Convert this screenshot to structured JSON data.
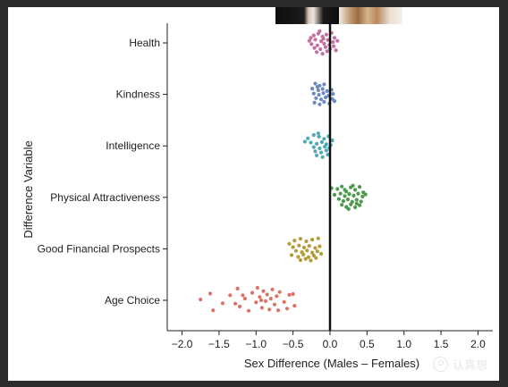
{
  "chart_data": {
    "type": "scatter",
    "title": "",
    "xlabel": "Sex Difference (Males – Females)",
    "ylabel": "Difference Variable",
    "xlim": [
      -2.2,
      2.2
    ],
    "x_ticks": [
      "−2.0",
      "−1.5",
      "−1.0",
      "−0.5",
      "0.0",
      "0.5",
      "1.0",
      "1.5",
      "2.0"
    ],
    "x_tick_values": [
      -2.0,
      -1.5,
      -1.0,
      -0.5,
      0.0,
      0.5,
      1.0,
      1.5,
      2.0
    ],
    "reference_line_x": 0.0,
    "grid": false,
    "legend": "none",
    "categories": [
      "Health",
      "Kindness",
      "Intelligence",
      "Physical Attractiveness",
      "Good Financial Prospects",
      "Age Choice"
    ],
    "colors": [
      "#c46fa3",
      "#6d89c2",
      "#4fa8b4",
      "#4d9a4d",
      "#b39c3c",
      "#db7366"
    ],
    "series": [
      {
        "values": [
          {
            "x": -0.22,
            "y": 0.18
          },
          {
            "x": -0.16,
            "y": 0.22
          },
          {
            "x": -0.1,
            "y": 0.15
          },
          {
            "x": -0.05,
            "y": 0.2
          },
          {
            "x": 0.02,
            "y": 0.24
          },
          {
            "x": 0.06,
            "y": 0.12
          },
          {
            "x": -0.28,
            "y": 0.05
          },
          {
            "x": -0.2,
            "y": 0.08
          },
          {
            "x": -0.12,
            "y": 0.04
          },
          {
            "x": -0.03,
            "y": 0.07
          },
          {
            "x": 0.04,
            "y": 0.02
          },
          {
            "x": 0.1,
            "y": 0.05
          },
          {
            "x": -0.25,
            "y": -0.03
          },
          {
            "x": -0.17,
            "y": -0.06
          },
          {
            "x": -0.08,
            "y": -0.02
          },
          {
            "x": -0.01,
            "y": -0.05
          },
          {
            "x": 0.05,
            "y": -0.08
          },
          {
            "x": -0.21,
            "y": -0.12
          },
          {
            "x": -0.13,
            "y": -0.15
          },
          {
            "x": -0.06,
            "y": -0.1
          },
          {
            "x": 0.0,
            "y": -0.14
          },
          {
            "x": -0.18,
            "y": -0.22
          },
          {
            "x": -0.1,
            "y": -0.26
          },
          {
            "x": -0.04,
            "y": -0.2
          },
          {
            "x": -0.14,
            "y": 0.28
          },
          {
            "x": -0.26,
            "y": 0.12
          },
          {
            "x": 0.08,
            "y": -0.18
          },
          {
            "x": -0.09,
            "y": 0.1
          }
        ]
      },
      {
        "values": [
          {
            "x": -0.2,
            "y": 0.26
          },
          {
            "x": -0.14,
            "y": 0.21
          },
          {
            "x": -0.08,
            "y": 0.24
          },
          {
            "x": -0.24,
            "y": 0.14
          },
          {
            "x": -0.16,
            "y": 0.1
          },
          {
            "x": -0.1,
            "y": 0.13
          },
          {
            "x": -0.04,
            "y": 0.08
          },
          {
            "x": 0.02,
            "y": 0.11
          },
          {
            "x": -0.22,
            "y": 0.02
          },
          {
            "x": -0.15,
            "y": -0.01
          },
          {
            "x": -0.09,
            "y": 0.03
          },
          {
            "x": -0.02,
            "y": -0.03
          },
          {
            "x": 0.04,
            "y": 0.01
          },
          {
            "x": -0.19,
            "y": -0.09
          },
          {
            "x": -0.12,
            "y": -0.12
          },
          {
            "x": -0.06,
            "y": -0.07
          },
          {
            "x": 0.03,
            "y": -0.11
          },
          {
            "x": -0.21,
            "y": -0.2
          },
          {
            "x": -0.14,
            "y": -0.24
          },
          {
            "x": -0.08,
            "y": -0.18
          },
          {
            "x": -0.01,
            "y": -0.22
          },
          {
            "x": -0.17,
            "y": 0.18
          },
          {
            "x": 0.06,
            "y": -0.16
          }
        ]
      },
      {
        "values": [
          {
            "x": -0.3,
            "y": 0.18
          },
          {
            "x": -0.22,
            "y": 0.26
          },
          {
            "x": -0.15,
            "y": 0.22
          },
          {
            "x": -0.08,
            "y": 0.17
          },
          {
            "x": -0.02,
            "y": 0.23
          },
          {
            "x": 0.03,
            "y": 0.13
          },
          {
            "x": -0.26,
            "y": 0.08
          },
          {
            "x": -0.18,
            "y": 0.05
          },
          {
            "x": -0.11,
            "y": 0.09
          },
          {
            "x": -0.05,
            "y": 0.04
          },
          {
            "x": -0.22,
            "y": -0.03
          },
          {
            "x": -0.14,
            "y": -0.06
          },
          {
            "x": -0.07,
            "y": -0.02
          },
          {
            "x": -0.01,
            "y": -0.05
          },
          {
            "x": -0.2,
            "y": -0.13
          },
          {
            "x": -0.12,
            "y": -0.16
          },
          {
            "x": -0.05,
            "y": -0.11
          },
          {
            "x": -0.18,
            "y": -0.23
          },
          {
            "x": -0.1,
            "y": -0.27
          },
          {
            "x": -0.03,
            "y": -0.21
          },
          {
            "x": -0.34,
            "y": 0.1
          },
          {
            "x": -0.16,
            "y": 0.3
          },
          {
            "x": 0.01,
            "y": 0.02
          }
        ]
      },
      {
        "values": [
          {
            "x": 0.02,
            "y": 0.22
          },
          {
            "x": 0.1,
            "y": 0.2
          },
          {
            "x": 0.16,
            "y": 0.26
          },
          {
            "x": 0.22,
            "y": 0.14
          },
          {
            "x": 0.28,
            "y": 0.24
          },
          {
            "x": 0.34,
            "y": 0.18
          },
          {
            "x": 0.4,
            "y": 0.25
          },
          {
            "x": 0.45,
            "y": 0.12
          },
          {
            "x": 0.06,
            "y": 0.06
          },
          {
            "x": 0.14,
            "y": 0.09
          },
          {
            "x": 0.2,
            "y": 0.03
          },
          {
            "x": 0.26,
            "y": 0.08
          },
          {
            "x": 0.32,
            "y": 0.04
          },
          {
            "x": 0.38,
            "y": 0.09
          },
          {
            "x": 0.44,
            "y": 0.02
          },
          {
            "x": 0.48,
            "y": 0.07
          },
          {
            "x": 0.12,
            "y": -0.04
          },
          {
            "x": 0.18,
            "y": -0.09
          },
          {
            "x": 0.24,
            "y": -0.05
          },
          {
            "x": 0.3,
            "y": -0.11
          },
          {
            "x": 0.36,
            "y": -0.06
          },
          {
            "x": 0.42,
            "y": -0.1
          },
          {
            "x": 0.16,
            "y": -0.18
          },
          {
            "x": 0.22,
            "y": -0.23
          },
          {
            "x": 0.28,
            "y": -0.17
          },
          {
            "x": 0.34,
            "y": -0.24
          },
          {
            "x": 0.4,
            "y": -0.19
          },
          {
            "x": 0.25,
            "y": -0.28
          },
          {
            "x": 0.31,
            "y": 0.28
          },
          {
            "x": 0.36,
            "y": -0.15
          },
          {
            "x": 0.2,
            "y": 0.18
          }
        ]
      },
      {
        "values": [
          {
            "x": -0.55,
            "y": 0.12
          },
          {
            "x": -0.48,
            "y": 0.2
          },
          {
            "x": -0.4,
            "y": 0.24
          },
          {
            "x": -0.32,
            "y": 0.18
          },
          {
            "x": -0.24,
            "y": 0.22
          },
          {
            "x": -0.16,
            "y": 0.25
          },
          {
            "x": -0.5,
            "y": 0.04
          },
          {
            "x": -0.42,
            "y": 0.08
          },
          {
            "x": -0.35,
            "y": 0.03
          },
          {
            "x": -0.28,
            "y": 0.07
          },
          {
            "x": -0.2,
            "y": 0.02
          },
          {
            "x": -0.14,
            "y": 0.06
          },
          {
            "x": -0.46,
            "y": -0.05
          },
          {
            "x": -0.38,
            "y": -0.08
          },
          {
            "x": -0.31,
            "y": -0.04
          },
          {
            "x": -0.24,
            "y": -0.09
          },
          {
            "x": -0.17,
            "y": -0.06
          },
          {
            "x": -0.52,
            "y": -0.15
          },
          {
            "x": -0.43,
            "y": -0.19
          },
          {
            "x": -0.36,
            "y": -0.14
          },
          {
            "x": -0.29,
            "y": -0.2
          },
          {
            "x": -0.22,
            "y": -0.16
          },
          {
            "x": -0.4,
            "y": -0.27
          },
          {
            "x": -0.33,
            "y": -0.24
          },
          {
            "x": -0.26,
            "y": -0.28
          },
          {
            "x": -0.19,
            "y": -0.22
          },
          {
            "x": -0.12,
            "y": -0.12
          }
        ]
      },
      {
        "values": [
          {
            "x": -1.75,
            "y": 0.02
          },
          {
            "x": -1.62,
            "y": 0.16
          },
          {
            "x": -1.58,
            "y": -0.24
          },
          {
            "x": -1.45,
            "y": -0.07
          },
          {
            "x": -1.35,
            "y": 0.12
          },
          {
            "x": -1.25,
            "y": 0.28
          },
          {
            "x": -1.22,
            "y": -0.15
          },
          {
            "x": -1.15,
            "y": 0.04
          },
          {
            "x": -1.1,
            "y": -0.25
          },
          {
            "x": -1.05,
            "y": 0.18
          },
          {
            "x": -1.0,
            "y": -0.05
          },
          {
            "x": -0.98,
            "y": 0.3
          },
          {
            "x": -0.95,
            "y": 0.08
          },
          {
            "x": -0.92,
            "y": -0.18
          },
          {
            "x": -0.9,
            "y": 0.22
          },
          {
            "x": -0.87,
            "y": -0.02
          },
          {
            "x": -0.85,
            "y": 0.14
          },
          {
            "x": -0.82,
            "y": -0.22
          },
          {
            "x": -0.8,
            "y": 0.04
          },
          {
            "x": -0.78,
            "y": 0.26
          },
          {
            "x": -0.75,
            "y": -0.1
          },
          {
            "x": -0.72,
            "y": 0.1
          },
          {
            "x": -0.7,
            "y": -0.24
          },
          {
            "x": -0.68,
            "y": 0.2
          },
          {
            "x": -0.62,
            "y": -0.04
          },
          {
            "x": -0.58,
            "y": -0.2
          },
          {
            "x": -0.55,
            "y": 0.13
          },
          {
            "x": -0.5,
            "y": 0.15
          },
          {
            "x": -0.48,
            "y": -0.13
          },
          {
            "x": -1.28,
            "y": -0.08
          },
          {
            "x": -0.93,
            "y": 0.0
          },
          {
            "x": -1.18,
            "y": 0.12
          }
        ]
      }
    ]
  },
  "watermark": {
    "text": "认真想"
  }
}
